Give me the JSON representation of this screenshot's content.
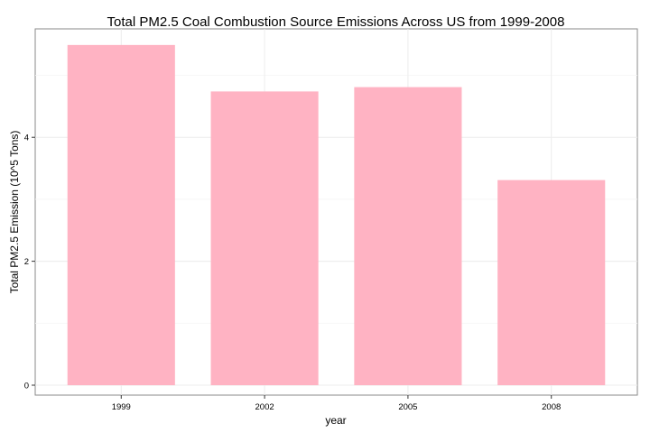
{
  "chart_data": {
    "type": "bar",
    "title": "Total PM2.5  Coal Combustion Source Emissions Across US from 1999-2008",
    "xlabel": "year",
    "ylabel": "Total PM2.5 Emission (10^5 Tons)",
    "categories": [
      "1999",
      "2002",
      "2005",
      "2008"
    ],
    "values": [
      5.49,
      4.74,
      4.81,
      3.31
    ],
    "ylim": [
      -0.16,
      5.75
    ],
    "yticks": [
      0,
      2,
      4
    ],
    "grid": true,
    "bar_color": "#ffb3c3"
  }
}
